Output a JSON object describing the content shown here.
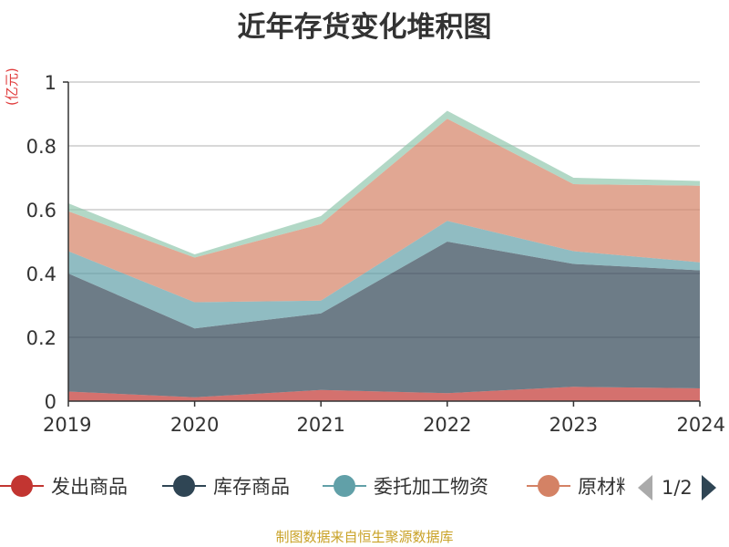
{
  "chart_data": {
    "type": "area",
    "stacked": true,
    "title": "近年存货变化堆积图",
    "unit_label": "(亿元)",
    "categories": [
      "2019",
      "2020",
      "2021",
      "2022",
      "2023",
      "2024"
    ],
    "ylim": [
      0,
      1
    ],
    "yticks": [
      "0",
      "0.2",
      "0.4",
      "0.6",
      "0.8",
      "1"
    ],
    "grid": true,
    "legend_position": "bottom",
    "series": [
      {
        "name": "发出商品",
        "color": "#c23531",
        "values": [
          0.03,
          0.012,
          0.035,
          0.025,
          0.045,
          0.04
        ]
      },
      {
        "name": "库存商品",
        "color": "#2f4554",
        "values": [
          0.37,
          0.216,
          0.24,
          0.475,
          0.385,
          0.37
        ]
      },
      {
        "name": "委托加工物资",
        "color": "#61a0a8",
        "values": [
          0.07,
          0.082,
          0.04,
          0.065,
          0.04,
          0.025
        ]
      },
      {
        "name": "原材料",
        "color": "#d48265",
        "values": [
          0.125,
          0.14,
          0.24,
          0.32,
          0.21,
          0.24
        ]
      },
      {
        "name": "",
        "color": "#91c7ae",
        "values": [
          0.025,
          0.01,
          0.025,
          0.025,
          0.02,
          0.015
        ]
      }
    ]
  },
  "legend": {
    "items": [
      "发出商品",
      "库存商品",
      "委托加工物资",
      "原材料"
    ],
    "page": "1/2"
  },
  "source": "制图数据来自恒生聚源数据库"
}
